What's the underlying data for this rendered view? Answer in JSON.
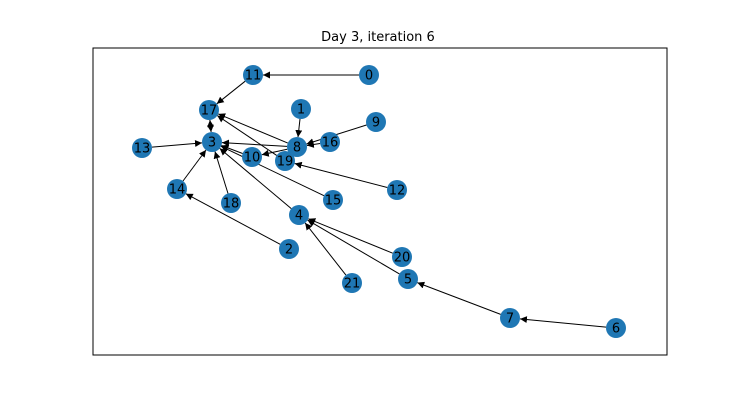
{
  "figure": {
    "title": "Day 3, iteration 6"
  },
  "colors": {
    "node_fill": "#1f77b4",
    "edge": "#000000",
    "frame": "#000000",
    "label": "#000000"
  },
  "graph": {
    "nodes": [
      {
        "id": "0",
        "label": "0"
      },
      {
        "id": "1",
        "label": "1"
      },
      {
        "id": "2",
        "label": "2"
      },
      {
        "id": "3",
        "label": "3"
      },
      {
        "id": "4",
        "label": "4"
      },
      {
        "id": "5",
        "label": "5"
      },
      {
        "id": "6",
        "label": "6"
      },
      {
        "id": "7",
        "label": "7"
      },
      {
        "id": "8",
        "label": "8"
      },
      {
        "id": "9",
        "label": "9"
      },
      {
        "id": "10",
        "label": "10"
      },
      {
        "id": "11",
        "label": "11"
      },
      {
        "id": "12",
        "label": "12"
      },
      {
        "id": "13",
        "label": "13"
      },
      {
        "id": "14",
        "label": "14"
      },
      {
        "id": "15",
        "label": "15"
      },
      {
        "id": "16",
        "label": "16"
      },
      {
        "id": "17",
        "label": "17"
      },
      {
        "id": "18",
        "label": "18"
      },
      {
        "id": "19",
        "label": "19"
      },
      {
        "id": "20",
        "label": "20"
      },
      {
        "id": "21",
        "label": "21"
      }
    ],
    "edges": [
      {
        "source": "0",
        "target": "11"
      },
      {
        "source": "11",
        "target": "17"
      },
      {
        "source": "3",
        "target": "17"
      },
      {
        "source": "17",
        "target": "3"
      },
      {
        "source": "13",
        "target": "3"
      },
      {
        "source": "14",
        "target": "3"
      },
      {
        "source": "18",
        "target": "3"
      },
      {
        "source": "10",
        "target": "3"
      },
      {
        "source": "8",
        "target": "3"
      },
      {
        "source": "15",
        "target": "3"
      },
      {
        "source": "4",
        "target": "3"
      },
      {
        "source": "19",
        "target": "17"
      },
      {
        "source": "8",
        "target": "17"
      },
      {
        "source": "1",
        "target": "8"
      },
      {
        "source": "16",
        "target": "8"
      },
      {
        "source": "9",
        "target": "8"
      },
      {
        "source": "8",
        "target": "10"
      },
      {
        "source": "12",
        "target": "19"
      },
      {
        "source": "2",
        "target": "14"
      },
      {
        "source": "20",
        "target": "4"
      },
      {
        "source": "21",
        "target": "4"
      },
      {
        "source": "5",
        "target": "4"
      },
      {
        "source": "7",
        "target": "5"
      },
      {
        "source": "6",
        "target": "7"
      }
    ]
  }
}
